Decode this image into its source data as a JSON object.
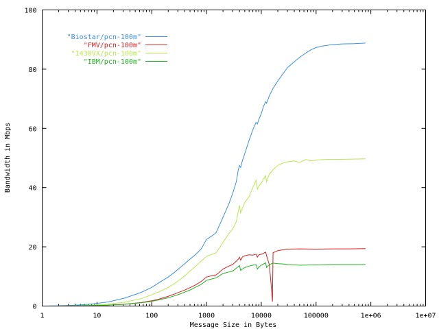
{
  "chart_data": {
    "type": "line",
    "title": "",
    "xlabel": "Message Size in Bytes",
    "ylabel": "Bandwidth in Mbps",
    "xscale": "log",
    "xlim": [
      1,
      10000000
    ],
    "ylim": [
      0,
      100
    ],
    "xticks": [
      {
        "value": 1,
        "label": "1"
      },
      {
        "value": 10,
        "label": "10"
      },
      {
        "value": 100,
        "label": "100"
      },
      {
        "value": 1000,
        "label": "1000"
      },
      {
        "value": 10000,
        "label": "10000"
      },
      {
        "value": 100000,
        "label": "100000"
      },
      {
        "value": 1000000,
        "label": "1e+06"
      },
      {
        "value": 10000000,
        "label": "1e+07"
      }
    ],
    "yticks": [
      {
        "value": 0,
        "label": "0"
      },
      {
        "value": 20,
        "label": "20"
      },
      {
        "value": 40,
        "label": "40"
      },
      {
        "value": 60,
        "label": "60"
      },
      {
        "value": 80,
        "label": "80"
      },
      {
        "value": 100,
        "label": "100"
      }
    ],
    "grid": false,
    "legend_position": "top-left",
    "series": [
      {
        "name": "\"Biostar/pcn-100m\"",
        "color": "#3a8ee6",
        "points": [
          [
            1,
            0.0
          ],
          [
            2,
            0.1
          ],
          [
            4,
            0.3
          ],
          [
            6,
            0.5
          ],
          [
            8,
            0.7
          ],
          [
            10,
            0.9
          ],
          [
            16,
            1.4
          ],
          [
            20,
            1.8
          ],
          [
            32,
            2.7
          ],
          [
            50,
            3.9
          ],
          [
            64,
            4.6
          ],
          [
            100,
            6.3
          ],
          [
            128,
            7.6
          ],
          [
            160,
            8.7
          ],
          [
            200,
            9.8
          ],
          [
            256,
            11.3
          ],
          [
            320,
            12.8
          ],
          [
            400,
            14.3
          ],
          [
            512,
            16.0
          ],
          [
            640,
            17.5
          ],
          [
            800,
            19.3
          ],
          [
            1000,
            22.5
          ],
          [
            1280,
            23.8
          ],
          [
            1500,
            24.8
          ],
          [
            2000,
            30.0
          ],
          [
            2560,
            34.5
          ],
          [
            3000,
            38.0
          ],
          [
            3500,
            42.0
          ],
          [
            3800,
            46.0
          ],
          [
            4000,
            47.5
          ],
          [
            4200,
            46.8
          ],
          [
            4500,
            49.0
          ],
          [
            5000,
            51.5
          ],
          [
            6000,
            56.0
          ],
          [
            7000,
            59.5
          ],
          [
            8000,
            62.0
          ],
          [
            8500,
            61.5
          ],
          [
            9000,
            63.0
          ],
          [
            10000,
            65.0
          ],
          [
            11000,
            67.5
          ],
          [
            12000,
            69.0
          ],
          [
            12500,
            68.5
          ],
          [
            14000,
            71.0
          ],
          [
            16384,
            73.5
          ],
          [
            20000,
            76.0
          ],
          [
            25000,
            78.5
          ],
          [
            30000,
            80.5
          ],
          [
            40000,
            82.5
          ],
          [
            50000,
            84.0
          ],
          [
            65536,
            85.5
          ],
          [
            80000,
            86.5
          ],
          [
            100000,
            87.3
          ],
          [
            130000,
            87.8
          ],
          [
            200000,
            88.3
          ],
          [
            300000,
            88.5
          ],
          [
            500000,
            88.6
          ],
          [
            800000,
            88.8
          ]
        ]
      },
      {
        "name": "\"FMV/pcn-100m\"",
        "color": "#d42020",
        "points": [
          [
            1,
            0.0
          ],
          [
            2,
            0.0
          ],
          [
            4,
            0.1
          ],
          [
            8,
            0.2
          ],
          [
            10,
            0.2
          ],
          [
            16,
            0.3
          ],
          [
            32,
            0.6
          ],
          [
            64,
            1.2
          ],
          [
            100,
            1.8
          ],
          [
            128,
            2.2
          ],
          [
            200,
            3.3
          ],
          [
            256,
            4.0
          ],
          [
            320,
            4.7
          ],
          [
            400,
            5.4
          ],
          [
            512,
            6.3
          ],
          [
            640,
            7.2
          ],
          [
            800,
            8.3
          ],
          [
            1000,
            9.8
          ],
          [
            1280,
            10.3
          ],
          [
            1500,
            10.5
          ],
          [
            2000,
            12.5
          ],
          [
            2560,
            13.5
          ],
          [
            3000,
            14.0
          ],
          [
            3800,
            15.8
          ],
          [
            4000,
            16.5
          ],
          [
            4200,
            15.5
          ],
          [
            4500,
            16.5
          ],
          [
            5000,
            17.0
          ],
          [
            6000,
            17.3
          ],
          [
            7000,
            17.2
          ],
          [
            8000,
            17.5
          ],
          [
            8500,
            16.5
          ],
          [
            9000,
            17.3
          ],
          [
            10000,
            17.5
          ],
          [
            11000,
            17.8
          ],
          [
            12000,
            18.2
          ],
          [
            12500,
            17.0
          ],
          [
            14000,
            14.0
          ],
          [
            15000,
            8.0
          ],
          [
            16000,
            1.5
          ],
          [
            16384,
            18.0
          ],
          [
            20000,
            18.7
          ],
          [
            25000,
            19.0
          ],
          [
            30000,
            19.2
          ],
          [
            50000,
            19.3
          ],
          [
            100000,
            19.2
          ],
          [
            200000,
            19.3
          ],
          [
            400000,
            19.3
          ],
          [
            800000,
            19.4
          ]
        ]
      },
      {
        "name": "\"I430VX/pcn-100m\"",
        "color": "#b8e850",
        "points": [
          [
            1,
            0.0
          ],
          [
            2,
            0.0
          ],
          [
            4,
            0.1
          ],
          [
            8,
            0.3
          ],
          [
            10,
            0.4
          ],
          [
            16,
            0.6
          ],
          [
            32,
            1.3
          ],
          [
            64,
            2.5
          ],
          [
            100,
            3.8
          ],
          [
            128,
            4.6
          ],
          [
            200,
            6.3
          ],
          [
            256,
            7.5
          ],
          [
            320,
            8.8
          ],
          [
            400,
            10.2
          ],
          [
            512,
            12.0
          ],
          [
            640,
            13.5
          ],
          [
            800,
            15.2
          ],
          [
            1000,
            16.8
          ],
          [
            1280,
            17.5
          ],
          [
            1500,
            18.0
          ],
          [
            2000,
            21.5
          ],
          [
            2560,
            24.5
          ],
          [
            3000,
            26.0
          ],
          [
            3500,
            28.5
          ],
          [
            3800,
            32.0
          ],
          [
            4000,
            34.0
          ],
          [
            4200,
            31.5
          ],
          [
            4500,
            33.0
          ],
          [
            5000,
            35.0
          ],
          [
            6000,
            37.0
          ],
          [
            7000,
            40.0
          ],
          [
            8000,
            42.5
          ],
          [
            8500,
            39.5
          ],
          [
            9000,
            40.5
          ],
          [
            10000,
            41.5
          ],
          [
            11000,
            43.0
          ],
          [
            12000,
            44.0
          ],
          [
            12500,
            42.0
          ],
          [
            14000,
            44.5
          ],
          [
            16384,
            46.0
          ],
          [
            20000,
            47.5
          ],
          [
            25000,
            48.3
          ],
          [
            30000,
            48.7
          ],
          [
            40000,
            49.0
          ],
          [
            50000,
            48.5
          ],
          [
            65536,
            49.5
          ],
          [
            80000,
            49.0
          ],
          [
            100000,
            49.3
          ],
          [
            150000,
            49.5
          ],
          [
            200000,
            49.5
          ],
          [
            400000,
            49.6
          ],
          [
            800000,
            49.7
          ]
        ]
      },
      {
        "name": "\"IBM/pcn-100m\"",
        "color": "#20b020",
        "points": [
          [
            1,
            0.0
          ],
          [
            2,
            0.0
          ],
          [
            4,
            0.1
          ],
          [
            8,
            0.2
          ],
          [
            10,
            0.2
          ],
          [
            16,
            0.3
          ],
          [
            32,
            0.6
          ],
          [
            64,
            1.1
          ],
          [
            100,
            1.6
          ],
          [
            128,
            2.0
          ],
          [
            200,
            2.8
          ],
          [
            256,
            3.4
          ],
          [
            320,
            4.0
          ],
          [
            400,
            4.7
          ],
          [
            512,
            5.5
          ],
          [
            640,
            6.4
          ],
          [
            800,
            7.3
          ],
          [
            1000,
            8.7
          ],
          [
            1280,
            9.2
          ],
          [
            1500,
            9.5
          ],
          [
            2000,
            11.0
          ],
          [
            2560,
            11.5
          ],
          [
            3000,
            11.8
          ],
          [
            3800,
            13.3
          ],
          [
            4000,
            13.7
          ],
          [
            4200,
            12.0
          ],
          [
            4500,
            12.5
          ],
          [
            5000,
            13.0
          ],
          [
            6000,
            13.5
          ],
          [
            7000,
            13.8
          ],
          [
            8000,
            14.0
          ],
          [
            8500,
            12.5
          ],
          [
            9000,
            13.2
          ],
          [
            10000,
            13.8
          ],
          [
            11000,
            14.2
          ],
          [
            12000,
            14.6
          ],
          [
            12500,
            13.0
          ],
          [
            14000,
            14.0
          ],
          [
            16384,
            14.5
          ],
          [
            20000,
            14.3
          ],
          [
            25000,
            14.2
          ],
          [
            30000,
            14.0
          ],
          [
            50000,
            13.8
          ],
          [
            100000,
            13.9
          ],
          [
            200000,
            14.0
          ],
          [
            400000,
            14.0
          ],
          [
            800000,
            14.0
          ]
        ]
      }
    ]
  }
}
